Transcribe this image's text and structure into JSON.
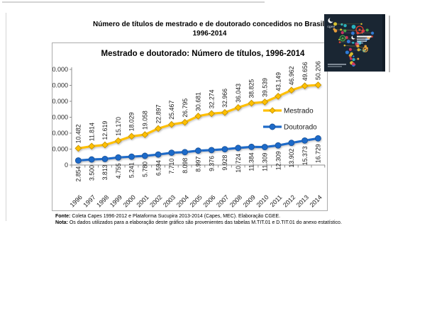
{
  "page": {
    "title_line1": "Número de títulos de mestrado e de doutorado concedidos no Brasil,",
    "title_line2": "1996-2014",
    "footer": {
      "fonte_label": "Fonte:",
      "fonte_text": " Coleta Capes 1996-2012 e Plataforma Sucupira 2013-2014 (Capes, MEC). Elaboração CGEE.",
      "nota_label": "Nota:",
      "nota_text": " Os dados utilizados para a elaboração deste gráfico são provenientes das tabelas M.TIT.01 e D.TIT.01 do anexo estatístico."
    },
    "cover": {
      "logo_text": "cgee"
    }
  },
  "chart_data": {
    "type": "line",
    "title": "Mestrado e doutorado: Número de títulos, 1996-2014",
    "categories": [
      1996,
      1997,
      1998,
      1999,
      2000,
      2001,
      2002,
      2003,
      2004,
      2005,
      2006,
      2007,
      2008,
      2009,
      2010,
      2011,
      2012,
      2013,
      2014
    ],
    "series": [
      {
        "name": "Mestrado",
        "color": "#FFC000",
        "marker": "diamond",
        "marker_stroke": "#C69500",
        "values": [
          10482,
          11814,
          12619,
          15170,
          18029,
          19058,
          22897,
          25467,
          26795,
          30681,
          32274,
          32966,
          36043,
          38825,
          39539,
          43149,
          46962,
          49656,
          50206
        ]
      },
      {
        "name": "Doutorado",
        "color": "#1F6BC9",
        "marker": "circle",
        "marker_stroke": "#17539C",
        "values": [
          2854,
          3500,
          3813,
          4755,
          5241,
          5780,
          6594,
          7710,
          8098,
          8997,
          9376,
          9928,
          10724,
          11384,
          11309,
          12309,
          13902,
          15373,
          16729
        ]
      }
    ],
    "ylim": [
      0,
      60000
    ],
    "ytick_step": 10000,
    "ytick_labels": [
      "0",
      "10.000",
      "20.000",
      "30.000",
      "40.000",
      "50.000",
      "60.000"
    ],
    "grid": false,
    "legend_position": "inside-right",
    "data_labels": "rotated-90"
  }
}
